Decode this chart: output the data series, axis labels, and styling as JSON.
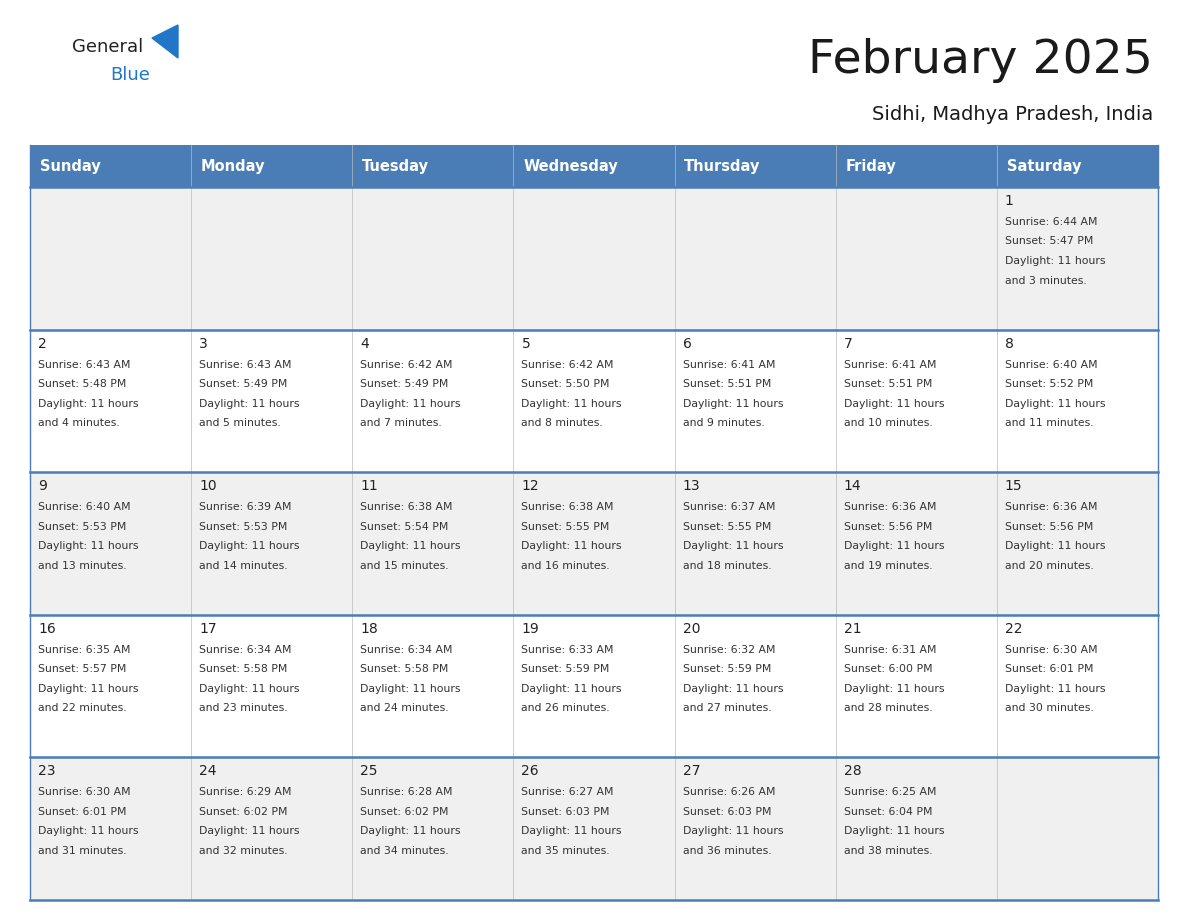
{
  "title": "February 2025",
  "subtitle": "Sidhi, Madhya Pradesh, India",
  "header_bg": "#4a7db5",
  "header_text": "#ffffff",
  "row_bg_light": "#f0f0f0",
  "row_bg_white": "#ffffff",
  "day_headers": [
    "Sunday",
    "Monday",
    "Tuesday",
    "Wednesday",
    "Thursday",
    "Friday",
    "Saturday"
  ],
  "logo_general_color": "#222222",
  "logo_blue_color": "#2176c7",
  "divider_color": "#4a7db5",
  "day_number_color": "#222222",
  "info_text_color": "#333333",
  "calendar_data": [
    [
      null,
      null,
      null,
      null,
      null,
      null,
      {
        "day": "1",
        "sunrise": "6:44 AM",
        "sunset": "5:47 PM",
        "daylight_line1": "Daylight: 11 hours",
        "daylight_line2": "and 3 minutes."
      }
    ],
    [
      {
        "day": "2",
        "sunrise": "6:43 AM",
        "sunset": "5:48 PM",
        "daylight_line1": "Daylight: 11 hours",
        "daylight_line2": "and 4 minutes."
      },
      {
        "day": "3",
        "sunrise": "6:43 AM",
        "sunset": "5:49 PM",
        "daylight_line1": "Daylight: 11 hours",
        "daylight_line2": "and 5 minutes."
      },
      {
        "day": "4",
        "sunrise": "6:42 AM",
        "sunset": "5:49 PM",
        "daylight_line1": "Daylight: 11 hours",
        "daylight_line2": "and 7 minutes."
      },
      {
        "day": "5",
        "sunrise": "6:42 AM",
        "sunset": "5:50 PM",
        "daylight_line1": "Daylight: 11 hours",
        "daylight_line2": "and 8 minutes."
      },
      {
        "day": "6",
        "sunrise": "6:41 AM",
        "sunset": "5:51 PM",
        "daylight_line1": "Daylight: 11 hours",
        "daylight_line2": "and 9 minutes."
      },
      {
        "day": "7",
        "sunrise": "6:41 AM",
        "sunset": "5:51 PM",
        "daylight_line1": "Daylight: 11 hours",
        "daylight_line2": "and 10 minutes."
      },
      {
        "day": "8",
        "sunrise": "6:40 AM",
        "sunset": "5:52 PM",
        "daylight_line1": "Daylight: 11 hours",
        "daylight_line2": "and 11 minutes."
      }
    ],
    [
      {
        "day": "9",
        "sunrise": "6:40 AM",
        "sunset": "5:53 PM",
        "daylight_line1": "Daylight: 11 hours",
        "daylight_line2": "and 13 minutes."
      },
      {
        "day": "10",
        "sunrise": "6:39 AM",
        "sunset": "5:53 PM",
        "daylight_line1": "Daylight: 11 hours",
        "daylight_line2": "and 14 minutes."
      },
      {
        "day": "11",
        "sunrise": "6:38 AM",
        "sunset": "5:54 PM",
        "daylight_line1": "Daylight: 11 hours",
        "daylight_line2": "and 15 minutes."
      },
      {
        "day": "12",
        "sunrise": "6:38 AM",
        "sunset": "5:55 PM",
        "daylight_line1": "Daylight: 11 hours",
        "daylight_line2": "and 16 minutes."
      },
      {
        "day": "13",
        "sunrise": "6:37 AM",
        "sunset": "5:55 PM",
        "daylight_line1": "Daylight: 11 hours",
        "daylight_line2": "and 18 minutes."
      },
      {
        "day": "14",
        "sunrise": "6:36 AM",
        "sunset": "5:56 PM",
        "daylight_line1": "Daylight: 11 hours",
        "daylight_line2": "and 19 minutes."
      },
      {
        "day": "15",
        "sunrise": "6:36 AM",
        "sunset": "5:56 PM",
        "daylight_line1": "Daylight: 11 hours",
        "daylight_line2": "and 20 minutes."
      }
    ],
    [
      {
        "day": "16",
        "sunrise": "6:35 AM",
        "sunset": "5:57 PM",
        "daylight_line1": "Daylight: 11 hours",
        "daylight_line2": "and 22 minutes."
      },
      {
        "day": "17",
        "sunrise": "6:34 AM",
        "sunset": "5:58 PM",
        "daylight_line1": "Daylight: 11 hours",
        "daylight_line2": "and 23 minutes."
      },
      {
        "day": "18",
        "sunrise": "6:34 AM",
        "sunset": "5:58 PM",
        "daylight_line1": "Daylight: 11 hours",
        "daylight_line2": "and 24 minutes."
      },
      {
        "day": "19",
        "sunrise": "6:33 AM",
        "sunset": "5:59 PM",
        "daylight_line1": "Daylight: 11 hours",
        "daylight_line2": "and 26 minutes."
      },
      {
        "day": "20",
        "sunrise": "6:32 AM",
        "sunset": "5:59 PM",
        "daylight_line1": "Daylight: 11 hours",
        "daylight_line2": "and 27 minutes."
      },
      {
        "day": "21",
        "sunrise": "6:31 AM",
        "sunset": "6:00 PM",
        "daylight_line1": "Daylight: 11 hours",
        "daylight_line2": "and 28 minutes."
      },
      {
        "day": "22",
        "sunrise": "6:30 AM",
        "sunset": "6:01 PM",
        "daylight_line1": "Daylight: 11 hours",
        "daylight_line2": "and 30 minutes."
      }
    ],
    [
      {
        "day": "23",
        "sunrise": "6:30 AM",
        "sunset": "6:01 PM",
        "daylight_line1": "Daylight: 11 hours",
        "daylight_line2": "and 31 minutes."
      },
      {
        "day": "24",
        "sunrise": "6:29 AM",
        "sunset": "6:02 PM",
        "daylight_line1": "Daylight: 11 hours",
        "daylight_line2": "and 32 minutes."
      },
      {
        "day": "25",
        "sunrise": "6:28 AM",
        "sunset": "6:02 PM",
        "daylight_line1": "Daylight: 11 hours",
        "daylight_line2": "and 34 minutes."
      },
      {
        "day": "26",
        "sunrise": "6:27 AM",
        "sunset": "6:03 PM",
        "daylight_line1": "Daylight: 11 hours",
        "daylight_line2": "and 35 minutes."
      },
      {
        "day": "27",
        "sunrise": "6:26 AM",
        "sunset": "6:03 PM",
        "daylight_line1": "Daylight: 11 hours",
        "daylight_line2": "and 36 minutes."
      },
      {
        "day": "28",
        "sunrise": "6:25 AM",
        "sunset": "6:04 PM",
        "daylight_line1": "Daylight: 11 hours",
        "daylight_line2": "and 38 minutes."
      },
      null
    ]
  ]
}
